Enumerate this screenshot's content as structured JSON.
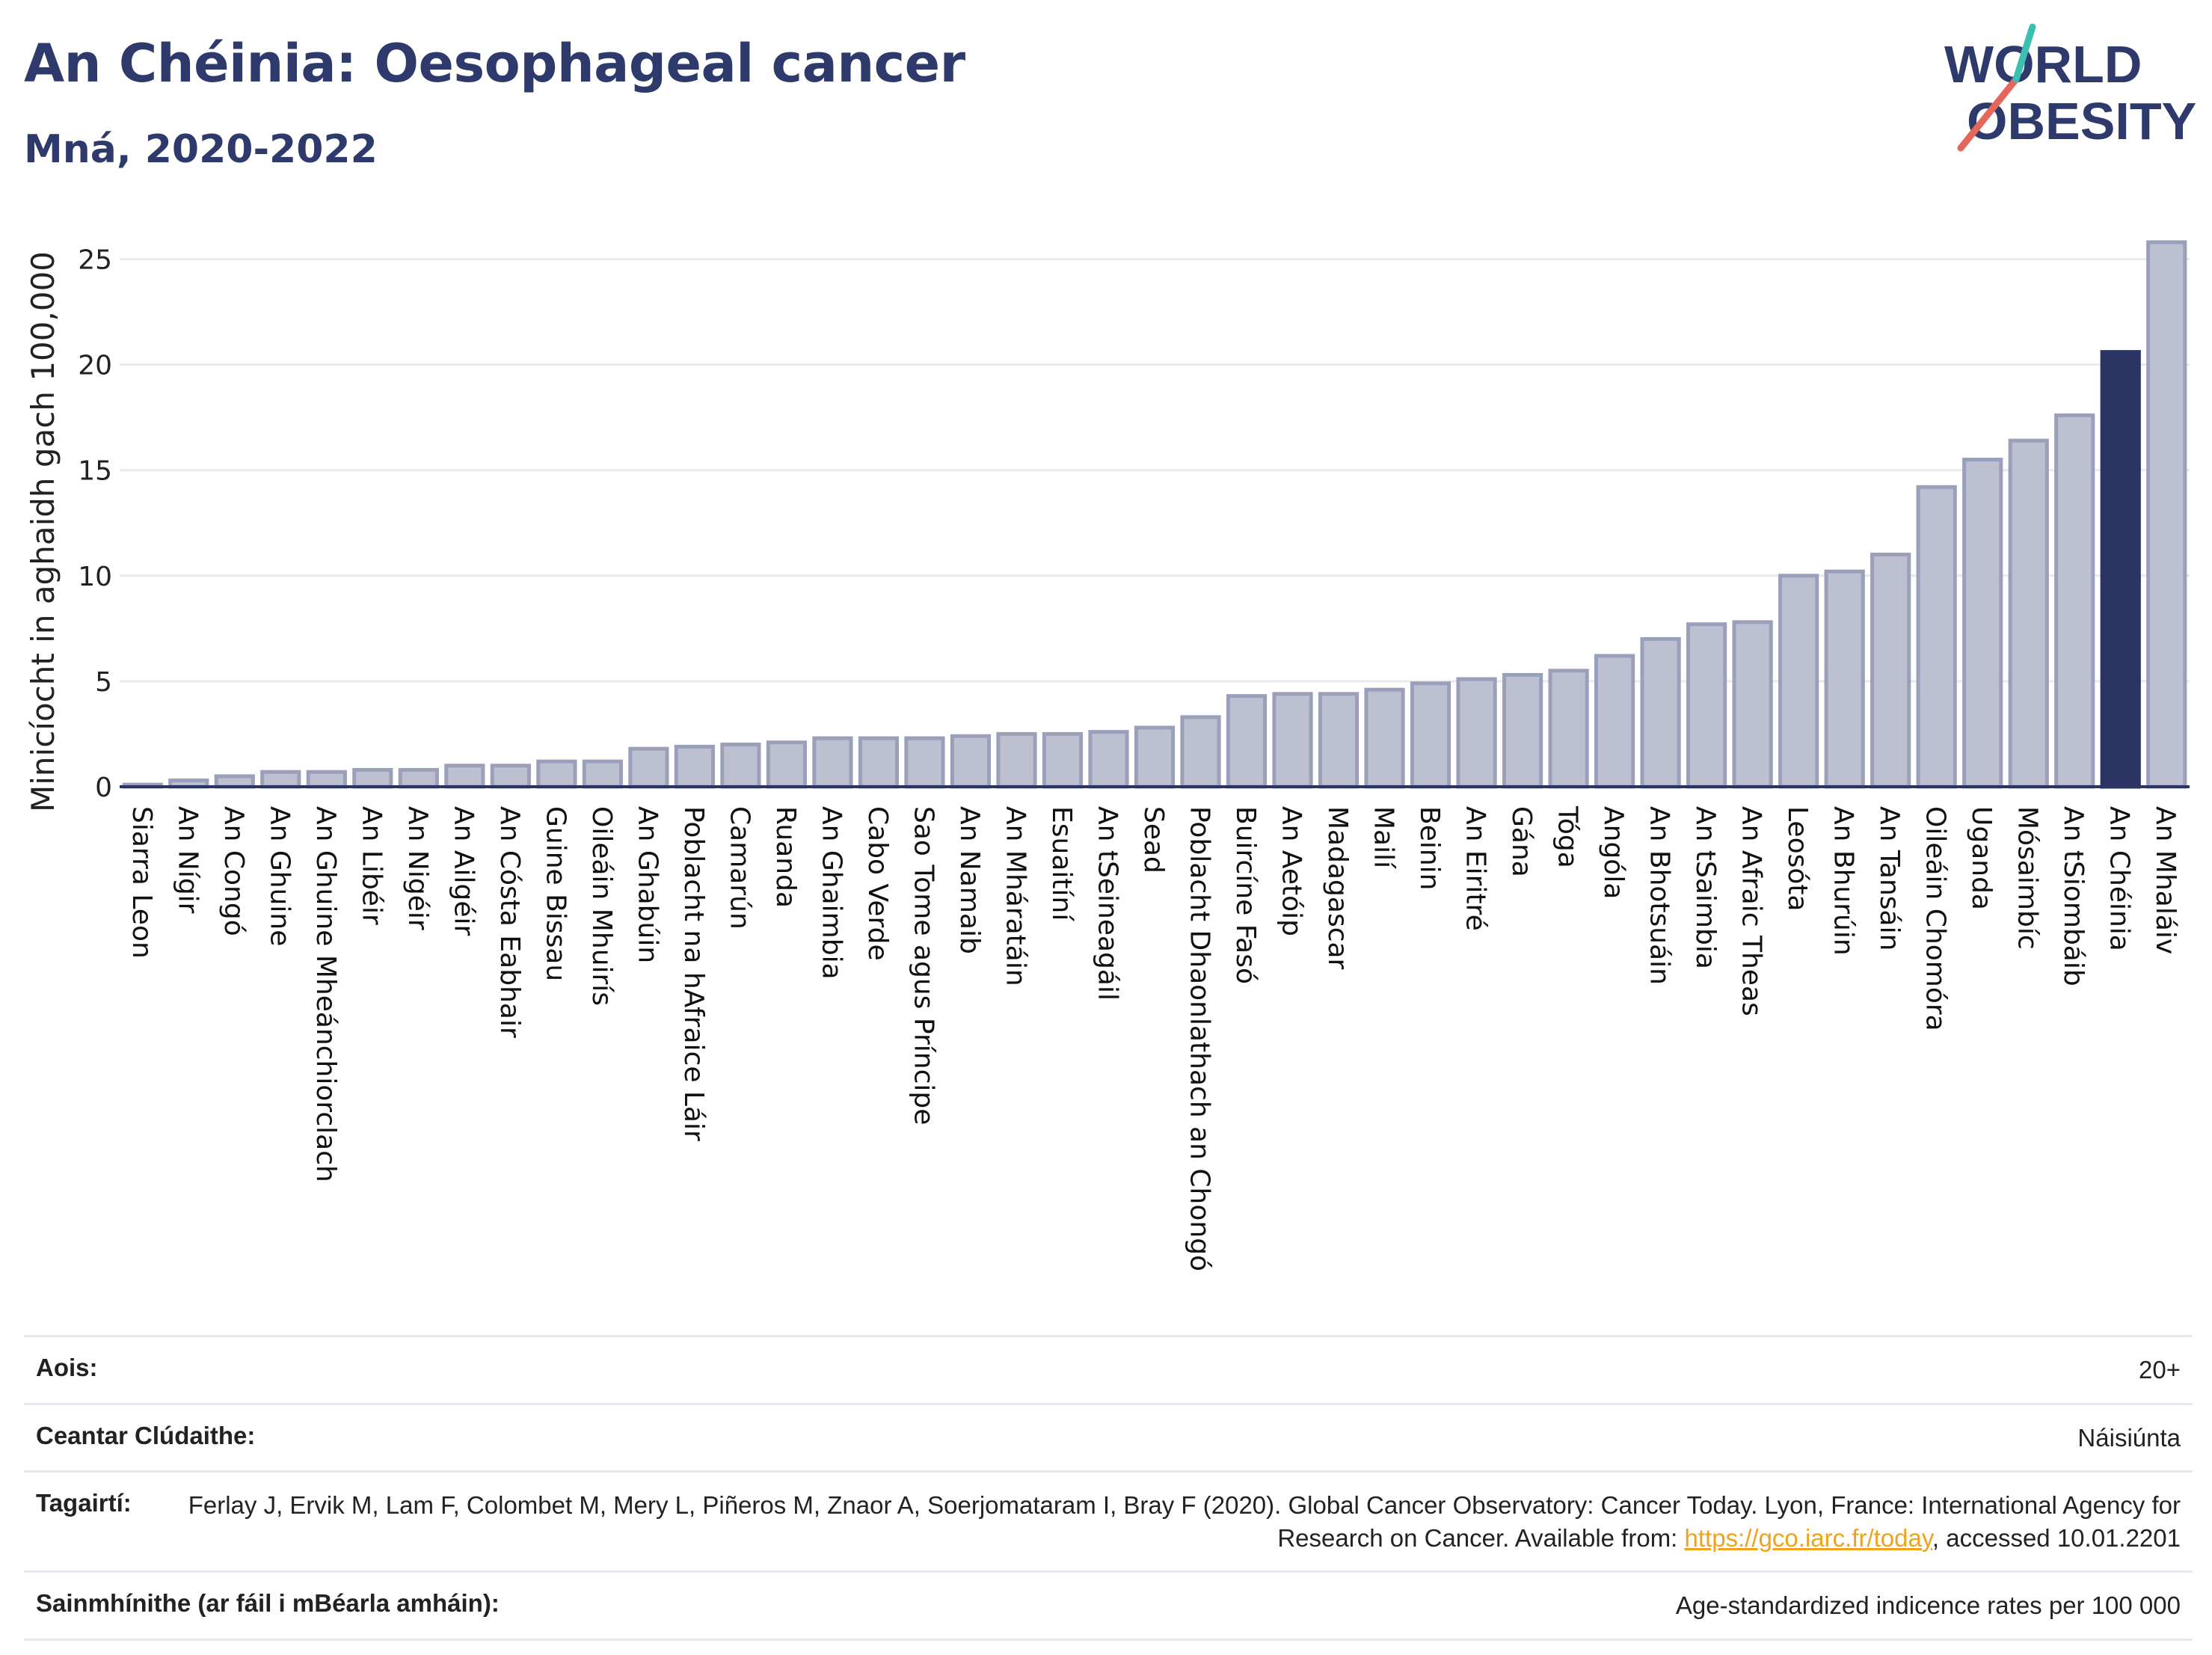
{
  "header": {
    "title": "An Chéinia: Oesophageal cancer",
    "subtitle": "Mná, 2020-2022"
  },
  "logo": {
    "line1": "WORLD",
    "line2": "OBESITY",
    "accent_teal": "#3bbfb3",
    "accent_red": "#e4675a"
  },
  "colors": {
    "bar": "#bcc0d0",
    "bar_edge": "#9aa0b9",
    "highlight": "#2b3564",
    "text": "#2e3a6b"
  },
  "chart_data": {
    "type": "bar",
    "ylabel": "Minicíocht in aghaidh gach 100,000",
    "ylim": [
      0,
      27
    ],
    "yticks": [
      0,
      5,
      10,
      15,
      20,
      25
    ],
    "grid": true,
    "highlight": "An Chéinia",
    "categories": [
      "Siarra Leon",
      "An Nígir",
      "An Congó",
      "An Ghuine",
      "An Ghuine Mheánchiorclach",
      "An Libéir",
      "An Nigéir",
      "An Ailgéir",
      "An Cósta Eabhair",
      "Guine Bissau",
      "Oileáin Mhuirís",
      "An Ghabúin",
      "Poblacht na hAfraice Láir",
      "Camarún",
      "Ruanda",
      "An Ghaimbia",
      "Cabo Verde",
      "Sao Tome agus Príncipe",
      "An Namaib",
      "An Mháratáin",
      "Esuaitíní",
      "An tSeineagáil",
      "Sead",
      "Poblacht Dhaonlathach an Chongó",
      "Buircíne Fasó",
      "An Aetóip",
      "Madagascar",
      "Mailí",
      "Beinin",
      "An Eiritré",
      "Gána",
      "Tóga",
      "Angóla",
      "An Bhotsuáin",
      "An tSaimbia",
      "An Afraic Theas",
      "Leosóta",
      "An Bhurúin",
      "An Tansáin",
      "Oileáin Chomóra",
      "Uganda",
      "Mósaimbíc",
      "An tSiombáib",
      "An Chéinia",
      "An Mhaláiv"
    ],
    "values": [
      0.1,
      0.3,
      0.5,
      0.7,
      0.7,
      0.8,
      0.8,
      1.0,
      1.0,
      1.2,
      1.2,
      1.8,
      1.9,
      2.0,
      2.1,
      2.3,
      2.3,
      2.3,
      2.4,
      2.5,
      2.5,
      2.6,
      2.8,
      3.3,
      4.3,
      4.4,
      4.4,
      4.6,
      4.9,
      5.1,
      5.3,
      5.5,
      6.2,
      7.0,
      7.7,
      7.8,
      10.0,
      10.2,
      11.0,
      14.2,
      15.5,
      16.4,
      17.6,
      20.6,
      25.8
    ]
  },
  "info": [
    {
      "label": "Aois:",
      "value": "20+"
    },
    {
      "label": "Ceantar Clúdaithe:",
      "value": "Náisiúnta"
    },
    {
      "label": "Tagairtí:",
      "value_pre": "Ferlay J, Ervik M, Lam F, Colombet M, Mery L, Piñeros M, Znaor A, Soerjomataram I, Bray F (2020). Global Cancer Observatory: Cancer Today. Lyon, France: International Agency for Research on Cancer. Available from: ",
      "link": "https://gco.iarc.fr/today",
      "value_post": ", accessed 10.01.2201"
    },
    {
      "label": "Sainmhínithe (ar fáil i mBéarla amháin):",
      "value": "Age-standardized indicence rates per 100 000"
    }
  ]
}
